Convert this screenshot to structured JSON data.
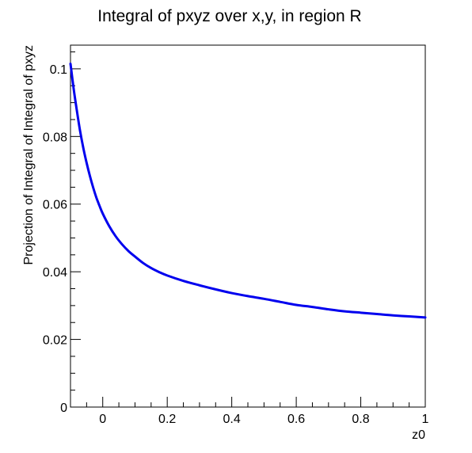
{
  "chart_data": {
    "type": "line",
    "title": "Integral of pxyz over x,y, in region R",
    "xlabel": "z0",
    "ylabel": "Projection of Integral of Integral of pxyz",
    "xlim": [
      -0.1,
      1.0
    ],
    "ylim": [
      0,
      0.107
    ],
    "x_major_ticks": [
      0,
      0.2,
      0.4,
      0.6,
      0.8,
      1
    ],
    "x_tick_labels": [
      "0",
      "0.2",
      "0.4",
      "0.6",
      "0.8",
      "1"
    ],
    "y_major_ticks": [
      0,
      0.02,
      0.04,
      0.06,
      0.08,
      0.1
    ],
    "y_tick_labels": [
      "0",
      "0.02",
      "0.04",
      "0.06",
      "0.08",
      "0.1"
    ],
    "grid": false,
    "series_color": "#0000ee",
    "series": [
      {
        "x": [
          -0.1,
          -0.09,
          -0.08,
          -0.07,
          -0.06,
          -0.05,
          -0.04,
          -0.03,
          -0.02,
          -0.01,
          0.0,
          0.02,
          0.04,
          0.06,
          0.08,
          0.1,
          0.125,
          0.15,
          0.175,
          0.2,
          0.25,
          0.3,
          0.35,
          0.4,
          0.45,
          0.5,
          0.55,
          0.6,
          0.65,
          0.7,
          0.75,
          0.8,
          0.85,
          0.9,
          0.95,
          1.0
        ],
        "values": [
          0.1015,
          0.094,
          0.0875,
          0.0815,
          0.0765,
          0.0722,
          0.0684,
          0.065,
          0.062,
          0.0595,
          0.0572,
          0.0535,
          0.0505,
          0.0481,
          0.0461,
          0.0445,
          0.0426,
          0.0411,
          0.0399,
          0.0389,
          0.0373,
          0.036,
          0.0348,
          0.0337,
          0.0328,
          0.032,
          0.0311,
          0.0302,
          0.0296,
          0.0289,
          0.0283,
          0.0279,
          0.0275,
          0.0271,
          0.0268,
          0.0265
        ]
      }
    ]
  }
}
